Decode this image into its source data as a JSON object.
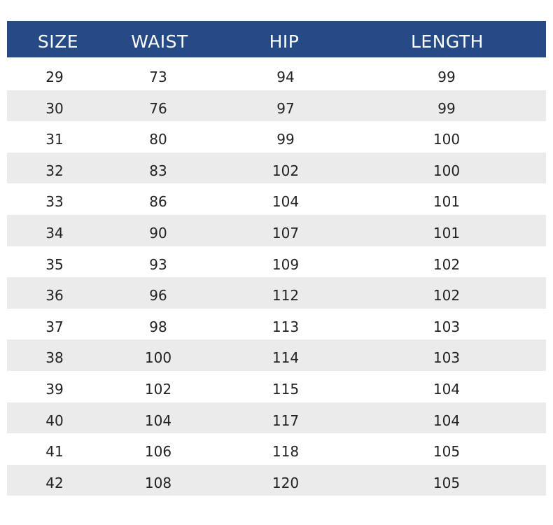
{
  "colors": {
    "header_bg": "#254a85",
    "stripe": "#ebebeb",
    "text": "#222222"
  },
  "table": {
    "headers": [
      "SIZE",
      "WAIST",
      "HIP",
      "LENGTH"
    ],
    "rows": [
      [
        "29",
        "73",
        "94",
        "99"
      ],
      [
        "30",
        "76",
        "97",
        "99"
      ],
      [
        "31",
        "80",
        "99",
        "100"
      ],
      [
        "32",
        "83",
        "102",
        "100"
      ],
      [
        "33",
        "86",
        "104",
        "101"
      ],
      [
        "34",
        "90",
        "107",
        "101"
      ],
      [
        "35",
        "93",
        "109",
        "102"
      ],
      [
        "36",
        "96",
        "112",
        "102"
      ],
      [
        "37",
        "98",
        "113",
        "103"
      ],
      [
        "38",
        "100",
        "114",
        "103"
      ],
      [
        "39",
        "102",
        "115",
        "104"
      ],
      [
        "40",
        "104",
        "117",
        "104"
      ],
      [
        "41",
        "106",
        "118",
        "105"
      ],
      [
        "42",
        "108",
        "120",
        "105"
      ]
    ]
  }
}
